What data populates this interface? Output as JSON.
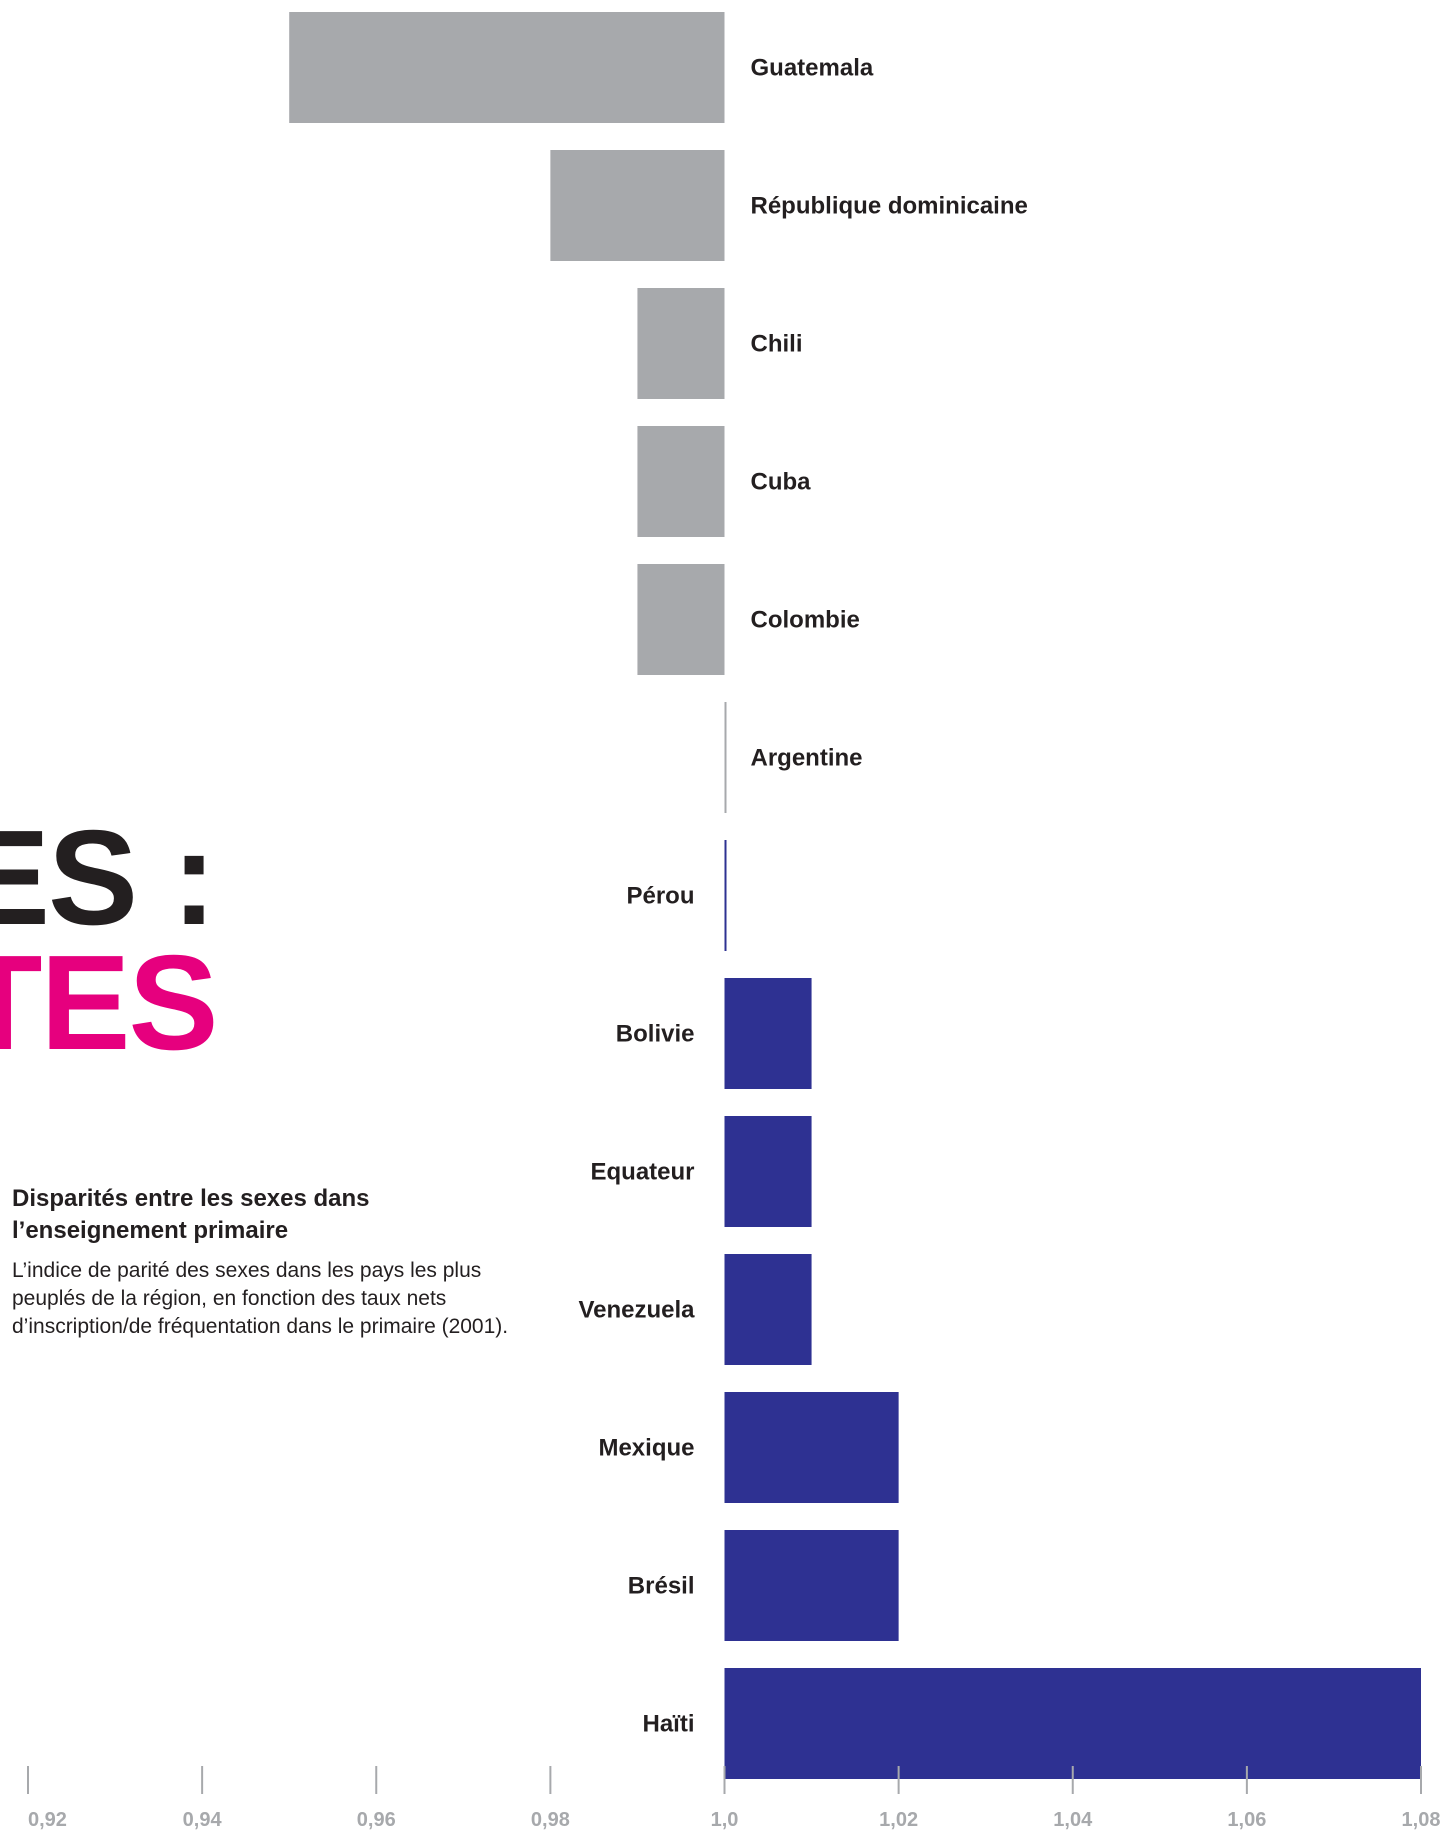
{
  "headline": {
    "line1": "ES :",
    "line2": "TES"
  },
  "caption": {
    "title": "Disparités entre les sexes dans l’enseignement primaire",
    "text": "L’indice de parité des sexes dans les pays les plus peuplés de la région, en fonction des taux nets d’inscription/de fréquentation dans le primaire (2001)."
  },
  "colors": {
    "below_parity": "#a7a9ac",
    "above_parity": "#2e3192",
    "headline_dark": "#231f20",
    "headline_accent": "#e6007e",
    "axis_text": "#a7a9ac"
  },
  "chart_data": {
    "type": "bar",
    "orientation": "horizontal",
    "baseline": 1.0,
    "xlim": [
      0.92,
      1.08
    ],
    "ticks": [
      "0,92",
      "0,94",
      "0,96",
      "0,98",
      "1,0",
      "1,02",
      "1,04",
      "1,06",
      "1,08"
    ],
    "tick_values": [
      0.92,
      0.94,
      0.96,
      0.98,
      1.0,
      1.02,
      1.04,
      1.06,
      1.08
    ],
    "grid": false,
    "categories": [
      "Guatemala",
      "République dominicaine",
      "Chili",
      "Cuba",
      "Colombie",
      "Argentine",
      "Pérou",
      "Bolivie",
      "Equateur",
      "Venezuela",
      "Mexique",
      "Brésil",
      "Haïti"
    ],
    "values": [
      0.95,
      0.98,
      0.99,
      0.99,
      0.99,
      1.0,
      1.0,
      1.01,
      1.01,
      1.01,
      1.02,
      1.02,
      1.08
    ]
  }
}
